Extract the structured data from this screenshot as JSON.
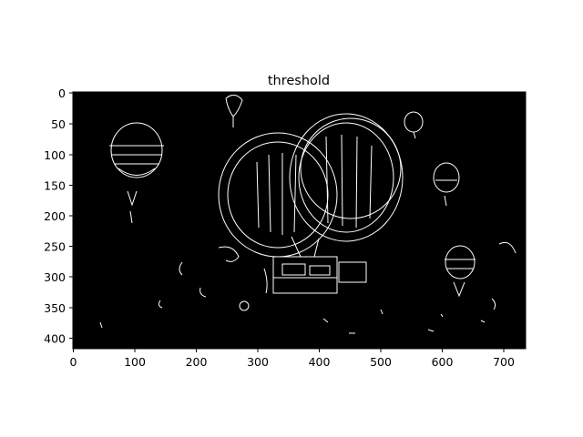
{
  "figure": {
    "title": "threshold"
  },
  "image_axes": {
    "x_ticks": [
      "0",
      "100",
      "200",
      "300",
      "400",
      "500",
      "600",
      "700"
    ],
    "y_ticks": [
      "0",
      "50",
      "100",
      "150",
      "200",
      "250",
      "300",
      "350",
      "400"
    ],
    "x_range": [
      0,
      736
    ],
    "y_range": [
      0,
      418
    ],
    "background_color": "#000000",
    "edge_color": "#ffffff"
  }
}
